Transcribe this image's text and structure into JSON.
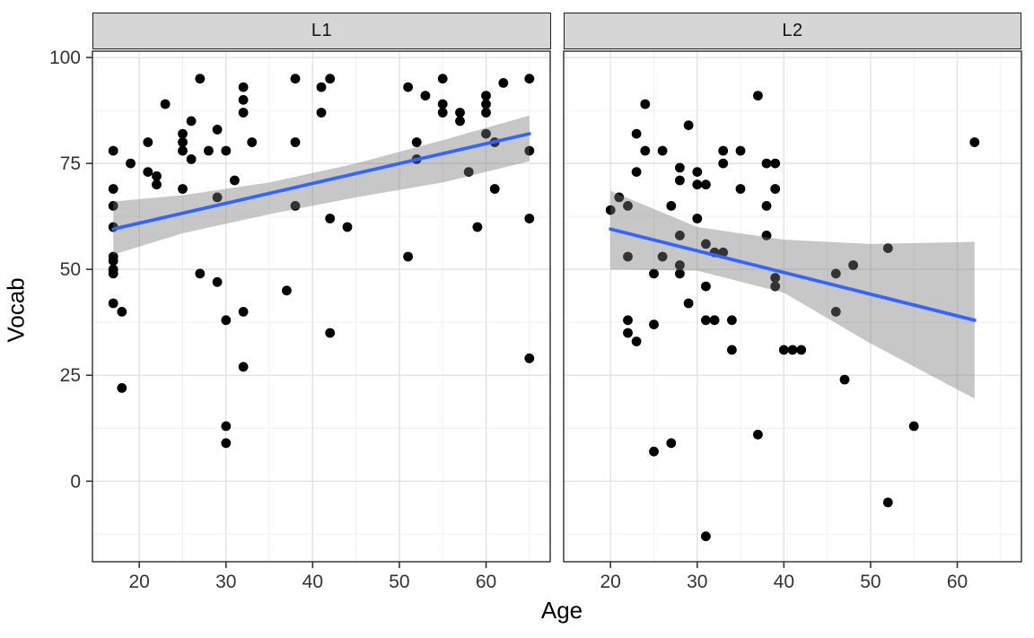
{
  "figure": {
    "kind": "faceted scatter plot with linear smooth",
    "facet_strip_labels": [
      "L1",
      "L2"
    ],
    "xlabel": "Age",
    "ylabel": "Vocab"
  },
  "colors": {
    "smooth_line": "#3366FF",
    "ribbon_base": "#7a7a7a",
    "ribbon_alpha": 0.42,
    "point": "#000000",
    "strip_fill": "#d6d6d6",
    "strip_border": "#1f1f1f",
    "panel_border": "#2b2b2b",
    "grid_major": "#e2e2e2",
    "grid_minor": "#f0f0f0",
    "axis_text": "#333333",
    "axis_title": "#000000",
    "tick_mark": "#333333",
    "background": "#ffffff"
  },
  "chart_data": {
    "type": "scatter",
    "title": "",
    "xlabel": "Age",
    "ylabel": "Vocab",
    "xlim": [
      14.6,
      67.4
    ],
    "ylim": [
      -19,
      101.5
    ],
    "x_ticks": [
      20,
      30,
      40,
      50,
      60
    ],
    "y_ticks": [
      0,
      25,
      50,
      75,
      100
    ],
    "x_minor": [
      15,
      25,
      35,
      45,
      55,
      65
    ],
    "y_minor": [
      -12.5,
      12.5,
      37.5,
      62.5,
      87.5
    ],
    "grid": true,
    "legend": "none",
    "facets": [
      {
        "label": "L1",
        "smooth": {
          "x": [
            17,
            65
          ],
          "y": [
            59.5,
            82
          ]
        },
        "ribbon": {
          "ages": [
            17,
            25,
            35,
            45,
            55,
            65
          ],
          "upper": [
            66,
            67.5,
            70.5,
            75,
            80.5,
            86.3
          ],
          "lower": [
            53.5,
            58.5,
            63,
            67,
            70.5,
            75.5
          ]
        },
        "points": [
          [
            27,
            95
          ],
          [
            38,
            95
          ],
          [
            42,
            95
          ],
          [
            55,
            95
          ],
          [
            65,
            95
          ],
          [
            62,
            94
          ],
          [
            41,
            93
          ],
          [
            32,
            93
          ],
          [
            51,
            93
          ],
          [
            53,
            91
          ],
          [
            60,
            91
          ],
          [
            32,
            90
          ],
          [
            23,
            89
          ],
          [
            55,
            89
          ],
          [
            60,
            89
          ],
          [
            55,
            87
          ],
          [
            57,
            87
          ],
          [
            60,
            87
          ],
          [
            32,
            87
          ],
          [
            41,
            87
          ],
          [
            57,
            85
          ],
          [
            26,
            85
          ],
          [
            29,
            83
          ],
          [
            25,
            82
          ],
          [
            60,
            82
          ],
          [
            25,
            80
          ],
          [
            21,
            80
          ],
          [
            33,
            80
          ],
          [
            38,
            80
          ],
          [
            52,
            80
          ],
          [
            61,
            80
          ],
          [
            28,
            78
          ],
          [
            30,
            78
          ],
          [
            17,
            78
          ],
          [
            25,
            78
          ],
          [
            65,
            78
          ],
          [
            19,
            75
          ],
          [
            26,
            76
          ],
          [
            52,
            76
          ],
          [
            58,
            73
          ],
          [
            21,
            73
          ],
          [
            22,
            72
          ],
          [
            31,
            71
          ],
          [
            22,
            70
          ],
          [
            61,
            69
          ],
          [
            17,
            69
          ],
          [
            25,
            69
          ],
          [
            29,
            67
          ],
          [
            38,
            65
          ],
          [
            17,
            65
          ],
          [
            42,
            62
          ],
          [
            65,
            62
          ],
          [
            17,
            60
          ],
          [
            44,
            60
          ],
          [
            59,
            60
          ],
          [
            51,
            53
          ],
          [
            17,
            53
          ],
          [
            17,
            52
          ],
          [
            17,
            50
          ],
          [
            17,
            49
          ],
          [
            27,
            49
          ],
          [
            29,
            47
          ],
          [
            37,
            45
          ],
          [
            17,
            42
          ],
          [
            18,
            40
          ],
          [
            32,
            40
          ],
          [
            30,
            38
          ],
          [
            42,
            35
          ],
          [
            65,
            29
          ],
          [
            32,
            27
          ],
          [
            18,
            22
          ],
          [
            30,
            13
          ],
          [
            30,
            9
          ]
        ]
      },
      {
        "label": "L2",
        "smooth": {
          "x": [
            20,
            62
          ],
          "y": [
            59.5,
            38
          ]
        },
        "ribbon": {
          "ages": [
            20,
            30,
            40,
            50,
            62
          ],
          "upper": [
            68.5,
            60,
            57,
            56,
            56.5
          ],
          "lower": [
            50,
            49.7,
            44.5,
            32.5,
            19.5
          ]
        },
        "points": [
          [
            37,
            91
          ],
          [
            24,
            89
          ],
          [
            29,
            84
          ],
          [
            23,
            82
          ],
          [
            62,
            80
          ],
          [
            24,
            78
          ],
          [
            26,
            78
          ],
          [
            33,
            78
          ],
          [
            35,
            78
          ],
          [
            33,
            75
          ],
          [
            38,
            75
          ],
          [
            39,
            75
          ],
          [
            23,
            73
          ],
          [
            28,
            74
          ],
          [
            30,
            73
          ],
          [
            28,
            71
          ],
          [
            30,
            70
          ],
          [
            31,
            70
          ],
          [
            35,
            69
          ],
          [
            39,
            69
          ],
          [
            21,
            67
          ],
          [
            20,
            64
          ],
          [
            22,
            65
          ],
          [
            27,
            65
          ],
          [
            38,
            65
          ],
          [
            30,
            62
          ],
          [
            28,
            58
          ],
          [
            38,
            58
          ],
          [
            31,
            56
          ],
          [
            52,
            55
          ],
          [
            48,
            51
          ],
          [
            46,
            49
          ],
          [
            28,
            51
          ],
          [
            32,
            54
          ],
          [
            33,
            54
          ],
          [
            26,
            53
          ],
          [
            22,
            53
          ],
          [
            25,
            49
          ],
          [
            28,
            49
          ],
          [
            39,
            48
          ],
          [
            39,
            46
          ],
          [
            31,
            46
          ],
          [
            29,
            42
          ],
          [
            46,
            40
          ],
          [
            22,
            38
          ],
          [
            22,
            35
          ],
          [
            25,
            37
          ],
          [
            31,
            38
          ],
          [
            32,
            38
          ],
          [
            34,
            38
          ],
          [
            23,
            33
          ],
          [
            34,
            31
          ],
          [
            40,
            31
          ],
          [
            41,
            31
          ],
          [
            42,
            31
          ],
          [
            47,
            24
          ],
          [
            37,
            11
          ],
          [
            55,
            13
          ],
          [
            25,
            7
          ],
          [
            27,
            9
          ],
          [
            52,
            -5
          ],
          [
            31,
            -13
          ]
        ]
      }
    ]
  }
}
